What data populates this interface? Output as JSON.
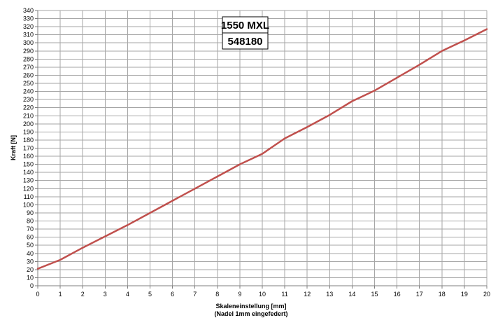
{
  "chart_data": {
    "type": "line",
    "title_lines": [
      "1550 MXL",
      "548180"
    ],
    "xlabel_lines": [
      "Skaleneinstellung [mm]",
      "(Nadel 1mm eingefedert)"
    ],
    "ylabel": "Kraft [N]",
    "xlim": [
      0,
      20
    ],
    "ylim": [
      0,
      340
    ],
    "x_ticks": [
      0,
      1,
      2,
      3,
      4,
      5,
      6,
      7,
      8,
      9,
      10,
      11,
      12,
      13,
      14,
      15,
      16,
      17,
      18,
      19,
      20
    ],
    "y_ticks": [
      0,
      10,
      20,
      30,
      40,
      50,
      60,
      70,
      80,
      90,
      100,
      110,
      120,
      130,
      140,
      150,
      160,
      170,
      180,
      190,
      200,
      210,
      220,
      230,
      240,
      250,
      260,
      270,
      280,
      290,
      300,
      310,
      320,
      330,
      340
    ],
    "grid": true,
    "series": [
      {
        "color": "#c0504d",
        "x": [
          0,
          1,
          2,
          3,
          4,
          5,
          6,
          7,
          8,
          9,
          10,
          11,
          12,
          13,
          14,
          15,
          16,
          17,
          18,
          19,
          20
        ],
        "y": [
          21,
          32,
          47,
          61,
          75,
          90,
          105,
          120,
          135,
          150,
          163,
          182,
          196,
          211,
          228,
          241,
          257,
          273,
          290,
          303,
          317
        ]
      }
    ]
  }
}
